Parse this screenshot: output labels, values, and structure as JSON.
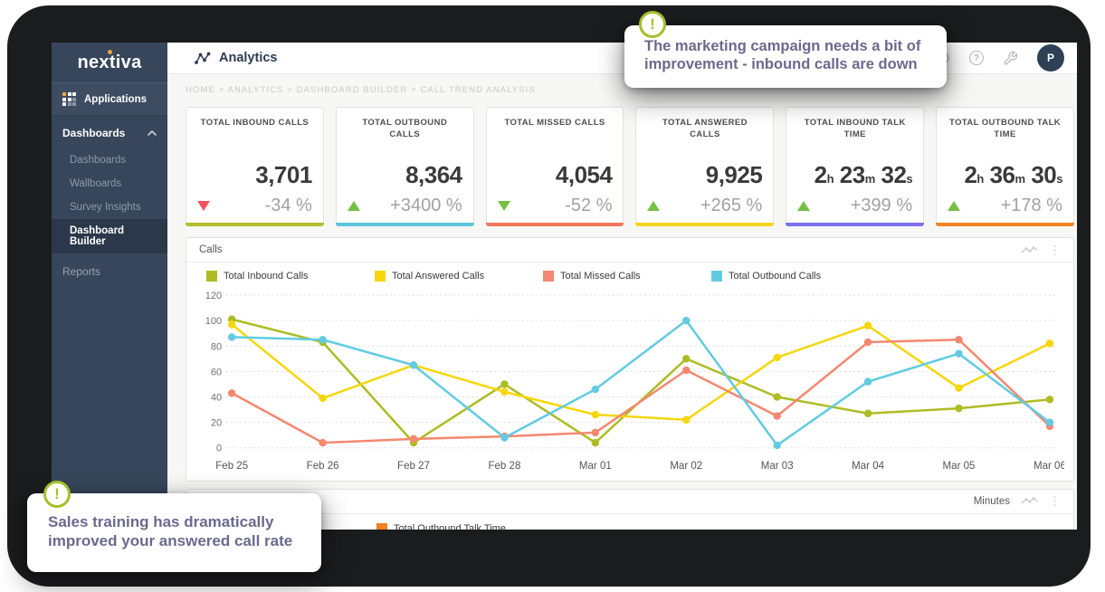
{
  "brand": {
    "logo_text": "nextiva"
  },
  "sidebar": {
    "applications_label": "Applications",
    "dashboards_label": "Dashboards",
    "sub_items": [
      {
        "label": "Dashboards",
        "active": false
      },
      {
        "label": "Wallboards",
        "active": false
      },
      {
        "label": "Survey Insights",
        "active": false
      },
      {
        "label": "Dashboard Builder",
        "active": true
      }
    ],
    "reports_label": "Reports"
  },
  "header": {
    "title": "Analytics",
    "avatar_initial": "P"
  },
  "breadcrumb": "HOME > ANALYTICS > DASHBOARD BUILDER > CALL TREND ANALYSIS",
  "icons": {
    "question_mark": "?",
    "kebab": "⋮",
    "exclamation": "!"
  },
  "kpi_cards": [
    {
      "title": "TOTAL INBOUND CALLS",
      "value": "3,701",
      "delta": "-34 %",
      "trend": "down",
      "trend_color": "#f2545b",
      "accent": "#b5bd2f"
    },
    {
      "title": "TOTAL OUTBOUND CALLS",
      "value": "8,364",
      "delta": "+3400 %",
      "trend": "up",
      "trend_color": "#76c043",
      "accent": "#5cc6dc"
    },
    {
      "title": "TOTAL MISSED CALLS",
      "value": "4,054",
      "delta": "-52 %",
      "trend": "down",
      "trend_color": "#76c043",
      "accent": "#f4765a"
    },
    {
      "title": "TOTAL ANSWERED CALLS",
      "value": "9,925",
      "delta": "+265 %",
      "trend": "up",
      "trend_color": "#76c043",
      "accent": "#f5d420"
    },
    {
      "title": "TOTAL INBOUND TALK TIME",
      "value": "2h 23m 32s",
      "value_parts": [
        [
          "2",
          "h"
        ],
        [
          "23",
          "m"
        ],
        [
          "32",
          "s"
        ]
      ],
      "delta": "+399 %",
      "trend": "up",
      "trend_color": "#76c043",
      "accent": "#7a6ff0"
    },
    {
      "title": "TOTAL OUTBOUND TALK TIME",
      "value": "2h 36m 30s",
      "value_parts": [
        [
          "2",
          "h"
        ],
        [
          "36",
          "m"
        ],
        [
          "30",
          "s"
        ]
      ],
      "delta": "+178 %",
      "trend": "up",
      "trend_color": "#76c043",
      "accent": "#f58220"
    }
  ],
  "calls_panel": {
    "title": "Calls"
  },
  "chart_data": {
    "type": "line",
    "title": "Calls",
    "x": [
      "Feb 25",
      "Feb 26",
      "Feb 27",
      "Feb 28",
      "Mar 01",
      "Mar 02",
      "Mar 03",
      "Mar 04",
      "Mar 05",
      "Mar 06"
    ],
    "ylim": [
      0,
      120
    ],
    "yticks": [
      0,
      20,
      40,
      60,
      80,
      100,
      120
    ],
    "grid": "horizontal-dashed",
    "legend_position": "top",
    "series": [
      {
        "name": "Total Inbound Calls",
        "color": "#aebc23",
        "values": [
          101,
          83,
          4,
          50,
          4,
          70,
          40,
          27,
          31,
          38
        ]
      },
      {
        "name": "Total Answered Calls",
        "color": "#f6d60d",
        "values": [
          97,
          39,
          65,
          44,
          26,
          22,
          71,
          96,
          47,
          82
        ]
      },
      {
        "name": "Total Missed Calls",
        "color": "#f48870",
        "values": [
          43,
          4,
          7,
          9,
          12,
          61,
          25,
          83,
          85,
          17
        ]
      },
      {
        "name": "Total Outbound Calls",
        "color": "#62cbe2",
        "values": [
          87,
          85,
          65,
          8,
          46,
          100,
          2,
          52,
          74,
          20
        ]
      }
    ]
  },
  "minutes_panel": {
    "title": "Minutes",
    "legend": [
      {
        "name": "Total Outbound Talk Time",
        "color": "#f58220"
      }
    ]
  },
  "tooltips": {
    "top": "The marketing campaign needs a bit of improvement - inbound calls are down",
    "bottom": "Sales training has dramatically improved your answered call rate"
  }
}
